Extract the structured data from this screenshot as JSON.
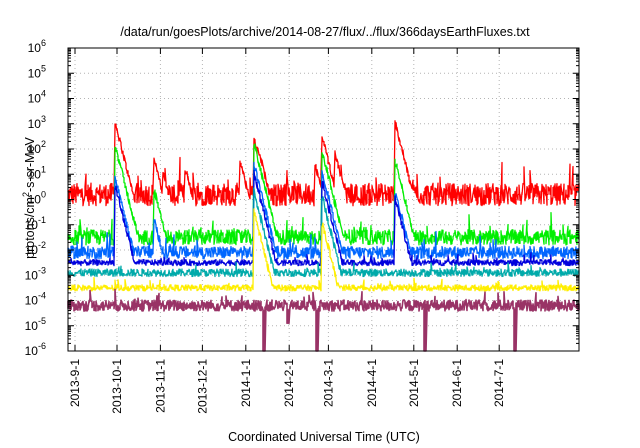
{
  "chart_data": {
    "type": "line",
    "title": "/data/run/goesPlots/archive/2014-08-27/flux/../flux/366daysEarthFluxes.txt",
    "xlabel": "Coordinated Universal Time (UTC)",
    "ylabel_parts": [
      "protons/cm",
      "2",
      "-s-sr-MeV"
    ],
    "y_scale": "log",
    "ylim_exponents": [
      -6,
      6
    ],
    "y_tick_base": "10",
    "y_tick_exponents": [
      "-6",
      "-5",
      "-4",
      "-3",
      "-2",
      "-1",
      "0",
      "1",
      "2",
      "3",
      "4",
      "5",
      "6"
    ],
    "xlim": [
      "2013-08-27",
      "2014-08-27"
    ],
    "x_ticks": [
      {
        "label": "2013-9-1",
        "date": "2013-09-01"
      },
      {
        "label": "2013-10-1",
        "date": "2013-10-01"
      },
      {
        "label": "2013-11-1",
        "date": "2013-11-01"
      },
      {
        "label": "2013-12-1",
        "date": "2013-12-01"
      },
      {
        "label": "2014-1-1",
        "date": "2014-01-01"
      },
      {
        "label": "2014-2-1",
        "date": "2014-02-01"
      },
      {
        "label": "2014-3-1",
        "date": "2014-03-01"
      },
      {
        "label": "2014-4-1",
        "date": "2014-04-01"
      },
      {
        "label": "2014-5-1",
        "date": "2014-05-01"
      },
      {
        "label": "2014-6-1",
        "date": "2014-06-01"
      },
      {
        "label": "2014-7-1",
        "date": "2014-07-01"
      }
    ],
    "grid": true,
    "series": [
      {
        "color": "#ff0000",
        "baseline_log": 0.2,
        "noise": 0.45,
        "events": [
          {
            "date": "2013-09-30",
            "peak_log": 3.0
          },
          {
            "date": "2013-10-28",
            "peak_log": 1.5
          },
          {
            "date": "2013-11-03",
            "peak_log": 1.1
          },
          {
            "date": "2013-11-19",
            "peak_log": 1.2
          },
          {
            "date": "2013-12-28",
            "peak_log": 1.5
          },
          {
            "date": "2014-01-07",
            "peak_log": 2.4
          },
          {
            "date": "2014-01-10",
            "peak_log": 2.0
          },
          {
            "date": "2014-02-20",
            "peak_log": 1.3
          },
          {
            "date": "2014-02-25",
            "peak_log": 2.4
          },
          {
            "date": "2014-03-06",
            "peak_log": 1.8
          },
          {
            "date": "2014-04-18",
            "peak_log": 3.0
          }
        ]
      },
      {
        "color": "#00ee00",
        "baseline_log": -1.5,
        "noise": 0.3,
        "events": [
          {
            "date": "2013-09-30",
            "peak_log": 2.1
          },
          {
            "date": "2013-10-28",
            "peak_log": 0.3
          },
          {
            "date": "2014-01-07",
            "peak_log": 2.2
          },
          {
            "date": "2014-02-25",
            "peak_log": 1.8
          },
          {
            "date": "2014-04-18",
            "peak_log": 1.5
          }
        ]
      },
      {
        "color": "#0066ff",
        "baseline_log": -2.1,
        "noise": 0.25,
        "events": [
          {
            "date": "2013-09-30",
            "peak_log": 0.8
          },
          {
            "date": "2013-10-28",
            "peak_log": -0.9
          },
          {
            "date": "2014-01-07",
            "peak_log": 1.4
          },
          {
            "date": "2014-02-25",
            "peak_log": 1.0
          },
          {
            "date": "2014-04-18",
            "peak_log": 0.3
          }
        ]
      },
      {
        "color": "#0000dd",
        "baseline_log": -2.5,
        "noise": 0.12,
        "events": [
          {
            "date": "2013-09-30",
            "peak_log": 0.5
          },
          {
            "date": "2014-01-07",
            "peak_log": 1.0
          },
          {
            "date": "2014-02-25",
            "peak_log": 0.6
          },
          {
            "date": "2014-04-18",
            "peak_log": 0.0
          }
        ]
      },
      {
        "color": "#00aaaa",
        "baseline_log": -2.9,
        "noise": 0.15,
        "events": [
          {
            "date": "2014-01-07",
            "peak_log": 0.3
          },
          {
            "date": "2014-02-25",
            "peak_log": 0.0
          }
        ]
      },
      {
        "color": "#ffee00",
        "baseline_log": -3.5,
        "noise": 0.12,
        "events": [
          {
            "date": "2014-01-07",
            "peak_log": -0.5
          },
          {
            "date": "2014-02-25",
            "peak_log": -1.0
          }
        ]
      },
      {
        "color": "#993366",
        "baseline_log": -4.2,
        "noise": 0.22,
        "events": [],
        "dips": [
          {
            "date": "2014-01-14",
            "min_log": -6.0
          },
          {
            "date": "2014-01-31",
            "min_log": -4.9
          },
          {
            "date": "2014-02-21",
            "min_log": -6.0
          },
          {
            "date": "2014-05-09",
            "min_log": -6.0
          },
          {
            "date": "2014-07-12",
            "min_log": -6.0
          }
        ]
      }
    ]
  }
}
